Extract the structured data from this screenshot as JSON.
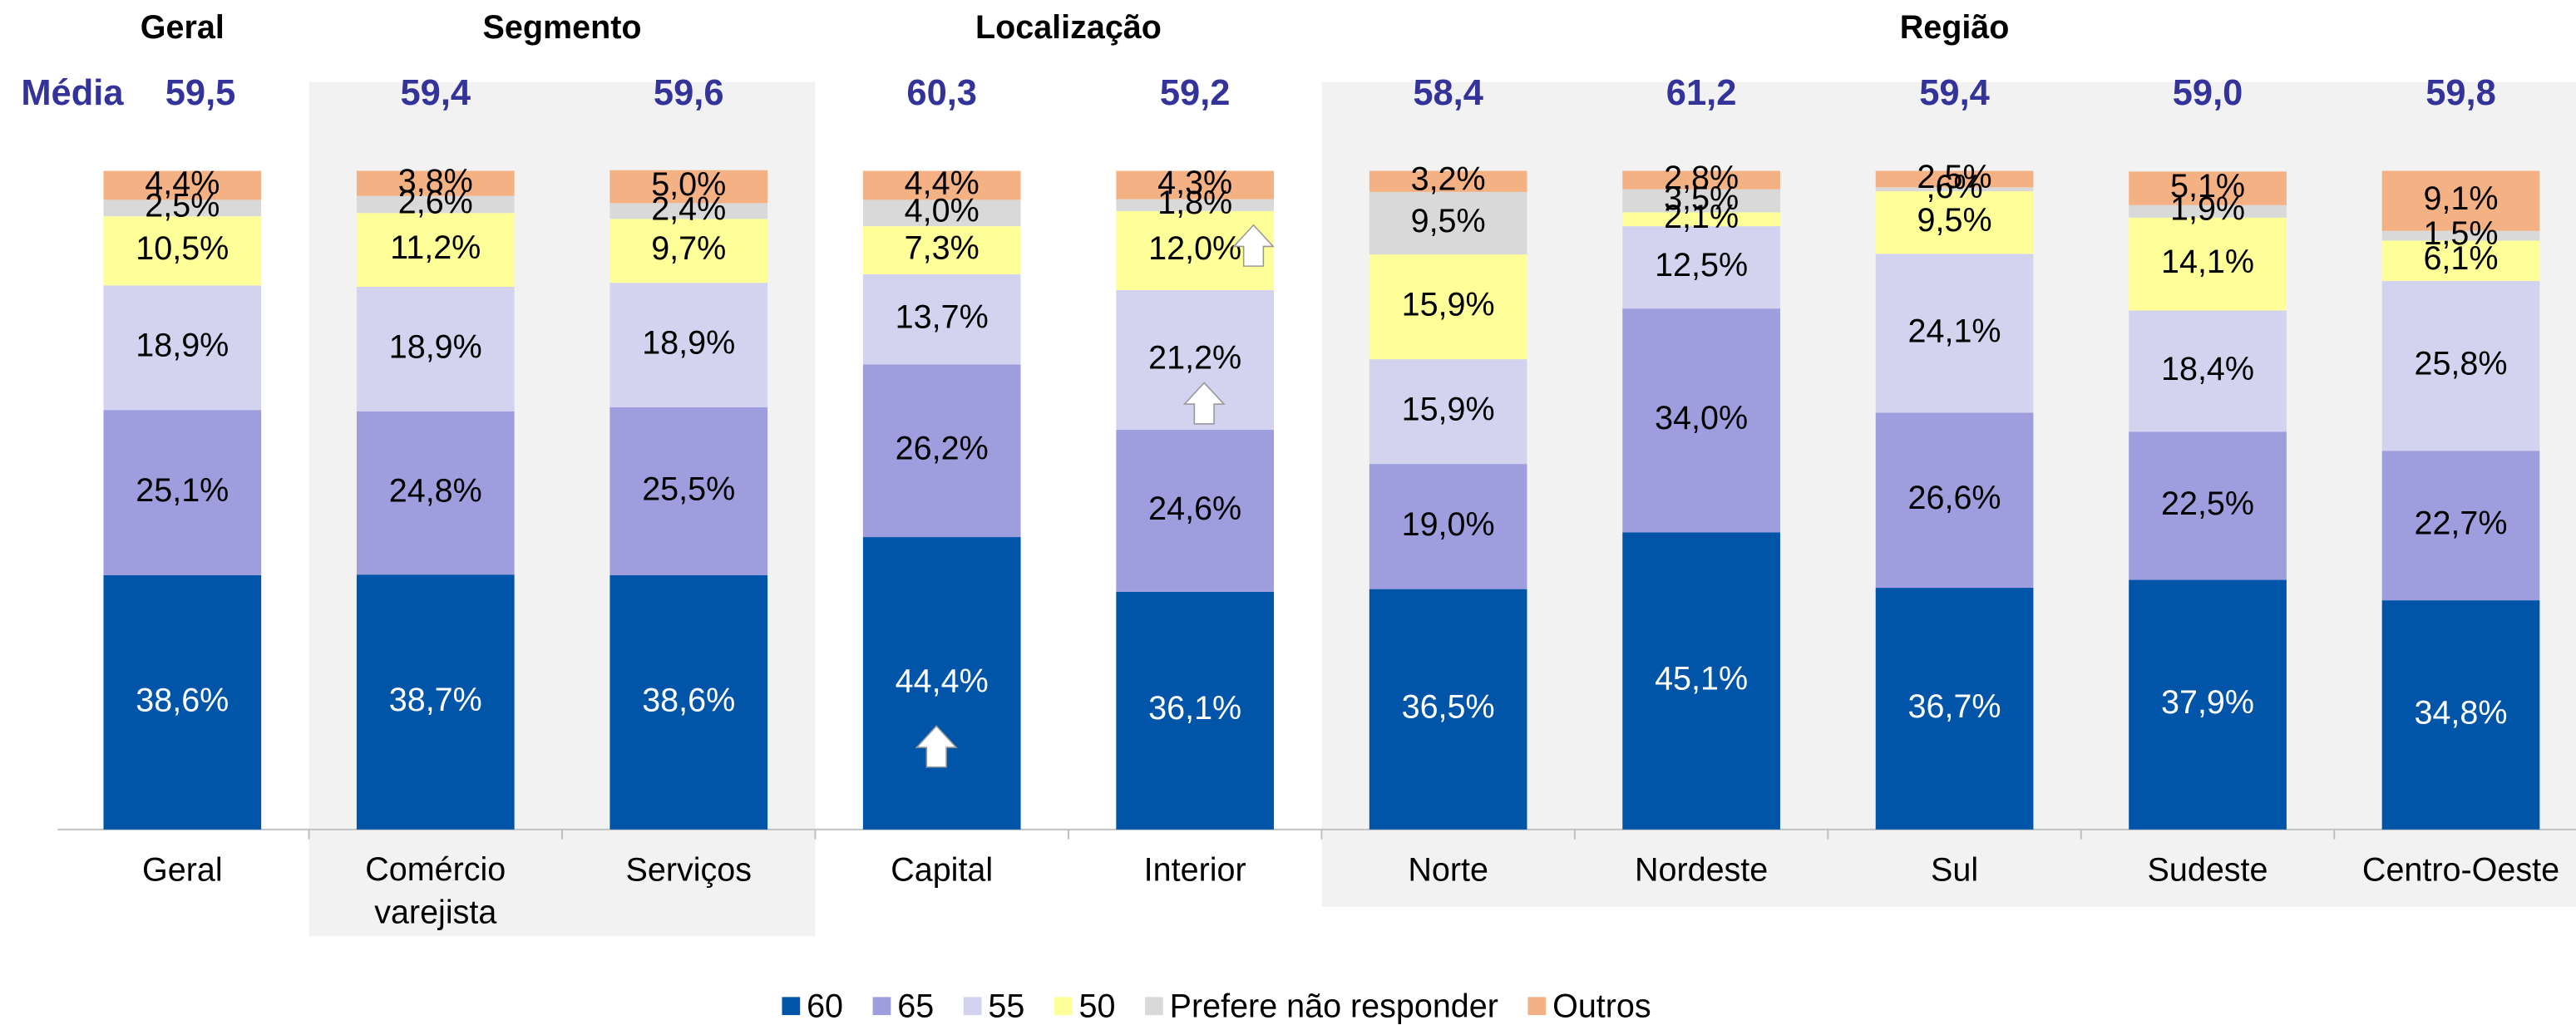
{
  "chart_data": {
    "type": "stacked_bar",
    "mean_title": "Média",
    "mean_labels": [
      "59,5",
      "59,4",
      "59,6",
      "60,3",
      "59,2",
      "58,4",
      "61,2",
      "59,4",
      "59,0",
      "59,8"
    ],
    "groups": [
      {
        "name": "Geral",
        "members": [
          "Geral"
        ],
        "shaded": false
      },
      {
        "name": "Segmento",
        "members": [
          "Comércio varejista",
          "Serviços"
        ],
        "shaded": true
      },
      {
        "name": "Localização",
        "members": [
          "Capital",
          "Interior"
        ],
        "shaded": false
      },
      {
        "name": "Região",
        "members": [
          "Norte",
          "Nordeste",
          "Sul",
          "Sudeste",
          "Centro-Oeste"
        ],
        "shaded": true
      }
    ],
    "categories": [
      "Geral",
      "Comércio varejista",
      "Serviços",
      "Capital",
      "Interior",
      "Norte",
      "Nordeste",
      "Sul",
      "Sudeste",
      "Centro-Oeste"
    ],
    "ylim": [
      0,
      100
    ],
    "series": [
      {
        "name": "60",
        "color": "#0055a9",
        "values": [
          38.6,
          38.7,
          38.6,
          44.4,
          36.1,
          36.5,
          45.1,
          36.7,
          37.9,
          34.8
        ],
        "value_labels": [
          "38,6%",
          "38,7%",
          "38,6%",
          "44,4%",
          "36,1%",
          "36,5%",
          "45,1%",
          "36,7%",
          "37,9%",
          "34,8%"
        ]
      },
      {
        "name": "65",
        "color": "#9e9ede",
        "values": [
          25.1,
          24.8,
          25.5,
          26.2,
          24.6,
          19.0,
          34.0,
          26.6,
          22.5,
          22.7
        ],
        "value_labels": [
          "25,1%",
          "24,8%",
          "25,5%",
          "26,2%",
          "24,6%",
          "19,0%",
          "34,0%",
          "26,6%",
          "22,5%",
          "22,7%"
        ]
      },
      {
        "name": "55",
        "color": "#d3d3f0",
        "values": [
          18.9,
          18.9,
          18.9,
          13.7,
          21.2,
          15.9,
          12.5,
          24.1,
          18.4,
          25.8
        ],
        "value_labels": [
          "18,9%",
          "18,9%",
          "18,9%",
          "13,7%",
          "21,2%",
          "15,9%",
          "12,5%",
          "24,1%",
          "18,4%",
          "25,8%"
        ]
      },
      {
        "name": "50",
        "color": "#ffff99",
        "values": [
          10.5,
          11.2,
          9.7,
          7.3,
          12.0,
          15.9,
          2.1,
          9.5,
          14.1,
          6.1
        ],
        "value_labels": [
          "10,5%",
          "11,2%",
          "9,7%",
          "7,3%",
          "12,0%",
          "15,9%",
          "2,1%",
          "9,5%",
          "14,1%",
          "6,1%"
        ]
      },
      {
        "name": "Prefere não responder",
        "color": "#d9d9d9",
        "values": [
          2.5,
          2.6,
          2.4,
          4.0,
          1.8,
          9.5,
          3.5,
          0.6,
          1.9,
          1.5
        ],
        "value_labels": [
          "2,5%",
          "2,6%",
          "2,4%",
          "4,0%",
          "1,8%",
          "9,5%",
          "3,5%",
          ",6%",
          "1,9%",
          "1,5%"
        ]
      },
      {
        "name": "Outros",
        "color": "#f4b183",
        "values": [
          4.4,
          3.8,
          5.0,
          4.4,
          4.3,
          3.2,
          2.8,
          2.5,
          5.1,
          9.1
        ],
        "value_labels": [
          "4,4%",
          "3,8%",
          "5,0%",
          "4,4%",
          "4,3%",
          "3,2%",
          "2,8%",
          "2,5%",
          "5,1%",
          "9,1%"
        ]
      }
    ]
  }
}
